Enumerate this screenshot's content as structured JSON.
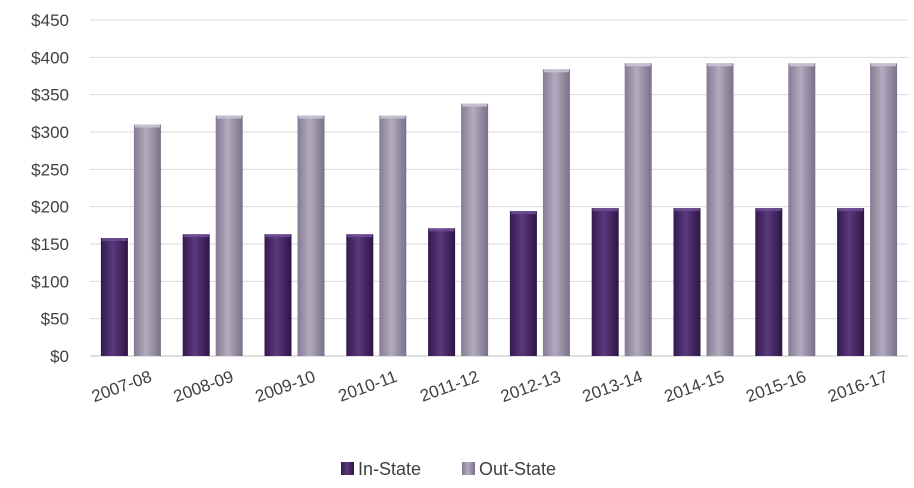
{
  "chart_data": {
    "type": "bar",
    "title": "",
    "xlabel": "",
    "ylabel": "",
    "categories": [
      "2007-08",
      "2008-09",
      "2009-10",
      "2010-11",
      "2011-12",
      "2012-13",
      "2013-14",
      "2014-15",
      "2015-16",
      "2016-17"
    ],
    "series": [
      {
        "name": "In-State",
        "values": [
          158,
          163,
          163,
          163,
          171,
          194,
          198,
          198,
          198,
          198
        ]
      },
      {
        "name": "Out-State",
        "values": [
          310,
          322,
          322,
          322,
          338,
          384,
          392,
          392,
          392,
          392
        ]
      }
    ],
    "ylim": [
      0,
      450
    ],
    "yticks": [
      0,
      50,
      100,
      150,
      200,
      250,
      300,
      350,
      400,
      450
    ],
    "ytick_labels": [
      "$0",
      "$50",
      "$100",
      "$150",
      "$200",
      "$250",
      "$300",
      "$350",
      "$400",
      "$450"
    ],
    "grid": true,
    "legend_position": "bottom",
    "colors": {
      "In-State": "#4a2a6b",
      "Out-State": "#9e95ab",
      "grid": "#d9d9d9",
      "axis": "#bfbfbf",
      "text": "#404040"
    }
  }
}
